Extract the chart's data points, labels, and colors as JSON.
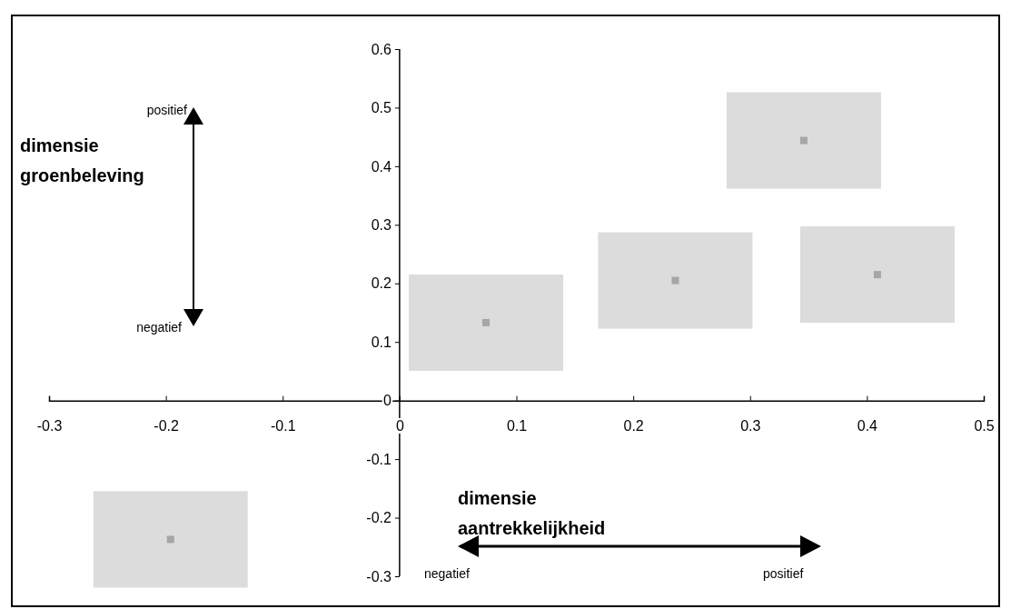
{
  "chart_data": {
    "type": "scatter",
    "x": [
      0.074,
      0.236,
      0.346,
      0.409,
      -0.196
    ],
    "values": [
      0.133,
      0.205,
      0.444,
      0.215,
      -0.237
    ],
    "color": "#a6a6a6",
    "marker": "square",
    "xlim": [
      -0.3,
      0.5
    ],
    "xticks": [
      -0.3,
      -0.2,
      -0.1,
      0,
      0.1,
      0.2,
      0.3,
      0.4,
      0.5
    ],
    "ylim": [
      -0.3,
      0.6
    ],
    "yticks": [
      -0.3,
      -0.2,
      -0.1,
      0,
      0.1,
      0.2,
      0.3,
      0.4,
      0.5,
      0.6
    ],
    "annotations": [
      "dimensie groenbeleving",
      "positief",
      "negatief",
      "dimensie aantrekkelijkheid",
      "negatief",
      "positief"
    ]
  }
}
